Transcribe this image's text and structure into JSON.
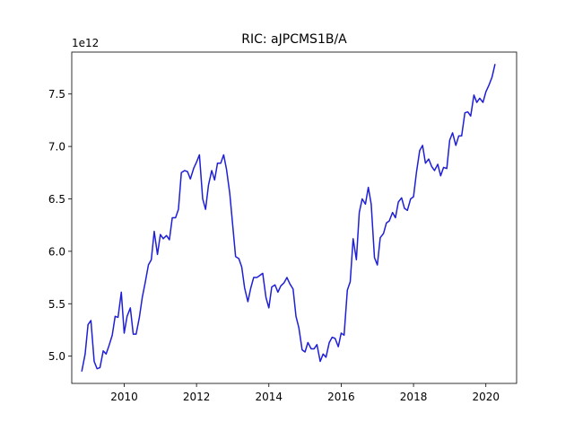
{
  "chart_data": {
    "type": "line",
    "title": "RIC: aJPCMS1B/A",
    "xlabel": "",
    "ylabel": "",
    "y_offset_label": "1e12",
    "y_scale_factor": 1000000000000,
    "xlim": [
      2008.55,
      2020.85
    ],
    "ylim": [
      4.74,
      7.9
    ],
    "x_ticks": [
      2010,
      2012,
      2014,
      2016,
      2018,
      2020
    ],
    "x_tick_labels": [
      "2010",
      "2012",
      "2014",
      "2016",
      "2018",
      "2020"
    ],
    "y_ticks": [
      5.0,
      5.5,
      6.0,
      6.5,
      7.0,
      7.5
    ],
    "y_tick_labels": [
      "5.0",
      "5.5",
      "6.0",
      "6.5",
      "7.0",
      "7.5"
    ],
    "grid": false,
    "legend": "none",
    "series": [
      {
        "color": "#1f1fd6",
        "points": [
          [
            2008.83,
            4.86
          ],
          [
            2008.92,
            5.02
          ],
          [
            2009.0,
            5.3
          ],
          [
            2009.08,
            5.34
          ],
          [
            2009.17,
            4.95
          ],
          [
            2009.25,
            4.88
          ],
          [
            2009.33,
            4.89
          ],
          [
            2009.42,
            5.05
          ],
          [
            2009.5,
            5.02
          ],
          [
            2009.58,
            5.1
          ],
          [
            2009.67,
            5.2
          ],
          [
            2009.75,
            5.38
          ],
          [
            2009.83,
            5.37
          ],
          [
            2009.92,
            5.61
          ],
          [
            2010.0,
            5.22
          ],
          [
            2010.08,
            5.38
          ],
          [
            2010.17,
            5.46
          ],
          [
            2010.25,
            5.21
          ],
          [
            2010.33,
            5.21
          ],
          [
            2010.42,
            5.37
          ],
          [
            2010.5,
            5.56
          ],
          [
            2010.58,
            5.7
          ],
          [
            2010.67,
            5.87
          ],
          [
            2010.75,
            5.92
          ],
          [
            2010.83,
            6.19
          ],
          [
            2010.92,
            5.97
          ],
          [
            2011.0,
            6.16
          ],
          [
            2011.08,
            6.12
          ],
          [
            2011.17,
            6.15
          ],
          [
            2011.25,
            6.11
          ],
          [
            2011.33,
            6.32
          ],
          [
            2011.42,
            6.32
          ],
          [
            2011.5,
            6.4
          ],
          [
            2011.58,
            6.75
          ],
          [
            2011.67,
            6.77
          ],
          [
            2011.75,
            6.76
          ],
          [
            2011.83,
            6.69
          ],
          [
            2011.92,
            6.79
          ],
          [
            2012.0,
            6.85
          ],
          [
            2012.08,
            6.92
          ],
          [
            2012.17,
            6.5
          ],
          [
            2012.25,
            6.4
          ],
          [
            2012.33,
            6.63
          ],
          [
            2012.42,
            6.77
          ],
          [
            2012.5,
            6.68
          ],
          [
            2012.58,
            6.84
          ],
          [
            2012.67,
            6.84
          ],
          [
            2012.75,
            6.92
          ],
          [
            2012.83,
            6.78
          ],
          [
            2012.92,
            6.55
          ],
          [
            2013.0,
            6.25
          ],
          [
            2013.08,
            5.95
          ],
          [
            2013.17,
            5.93
          ],
          [
            2013.25,
            5.85
          ],
          [
            2013.33,
            5.65
          ],
          [
            2013.42,
            5.52
          ],
          [
            2013.5,
            5.65
          ],
          [
            2013.58,
            5.75
          ],
          [
            2013.67,
            5.75
          ],
          [
            2013.75,
            5.77
          ],
          [
            2013.83,
            5.79
          ],
          [
            2013.92,
            5.56
          ],
          [
            2014.0,
            5.46
          ],
          [
            2014.08,
            5.66
          ],
          [
            2014.17,
            5.68
          ],
          [
            2014.25,
            5.61
          ],
          [
            2014.33,
            5.67
          ],
          [
            2014.42,
            5.7
          ],
          [
            2014.5,
            5.75
          ],
          [
            2014.58,
            5.69
          ],
          [
            2014.67,
            5.64
          ],
          [
            2014.75,
            5.38
          ],
          [
            2014.83,
            5.27
          ],
          [
            2014.92,
            5.06
          ],
          [
            2015.0,
            5.04
          ],
          [
            2015.08,
            5.13
          ],
          [
            2015.17,
            5.07
          ],
          [
            2015.25,
            5.07
          ],
          [
            2015.33,
            5.11
          ],
          [
            2015.42,
            4.95
          ],
          [
            2015.5,
            5.02
          ],
          [
            2015.58,
            4.99
          ],
          [
            2015.67,
            5.13
          ],
          [
            2015.75,
            5.18
          ],
          [
            2015.83,
            5.17
          ],
          [
            2015.92,
            5.09
          ],
          [
            2016.0,
            5.22
          ],
          [
            2016.08,
            5.2
          ],
          [
            2016.17,
            5.63
          ],
          [
            2016.25,
            5.71
          ],
          [
            2016.33,
            6.12
          ],
          [
            2016.42,
            5.92
          ],
          [
            2016.5,
            6.37
          ],
          [
            2016.58,
            6.5
          ],
          [
            2016.67,
            6.45
          ],
          [
            2016.75,
            6.61
          ],
          [
            2016.83,
            6.45
          ],
          [
            2016.92,
            5.94
          ],
          [
            2017.0,
            5.87
          ],
          [
            2017.08,
            6.13
          ],
          [
            2017.17,
            6.17
          ],
          [
            2017.25,
            6.27
          ],
          [
            2017.33,
            6.29
          ],
          [
            2017.42,
            6.37
          ],
          [
            2017.5,
            6.32
          ],
          [
            2017.58,
            6.47
          ],
          [
            2017.67,
            6.51
          ],
          [
            2017.75,
            6.41
          ],
          [
            2017.83,
            6.39
          ],
          [
            2017.92,
            6.5
          ],
          [
            2018.0,
            6.52
          ],
          [
            2018.08,
            6.75
          ],
          [
            2018.17,
            6.96
          ],
          [
            2018.25,
            7.01
          ],
          [
            2018.33,
            6.84
          ],
          [
            2018.42,
            6.88
          ],
          [
            2018.5,
            6.81
          ],
          [
            2018.58,
            6.77
          ],
          [
            2018.67,
            6.83
          ],
          [
            2018.75,
            6.72
          ],
          [
            2018.83,
            6.8
          ],
          [
            2018.92,
            6.79
          ],
          [
            2019.0,
            7.06
          ],
          [
            2019.08,
            7.13
          ],
          [
            2019.17,
            7.01
          ],
          [
            2019.25,
            7.1
          ],
          [
            2019.33,
            7.1
          ],
          [
            2019.42,
            7.32
          ],
          [
            2019.5,
            7.33
          ],
          [
            2019.58,
            7.29
          ],
          [
            2019.67,
            7.49
          ],
          [
            2019.75,
            7.42
          ],
          [
            2019.83,
            7.46
          ],
          [
            2019.92,
            7.42
          ],
          [
            2020.0,
            7.52
          ],
          [
            2020.08,
            7.58
          ],
          [
            2020.17,
            7.66
          ],
          [
            2020.25,
            7.78
          ]
        ]
      }
    ]
  }
}
